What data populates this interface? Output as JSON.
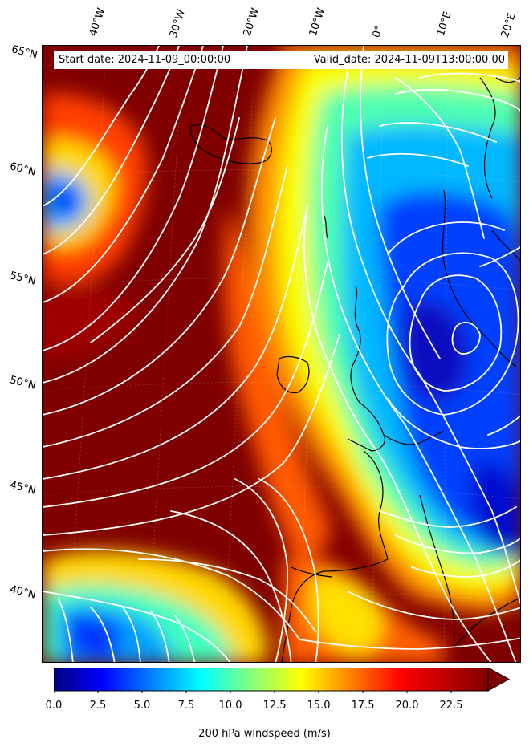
{
  "header": {
    "start_date": "Start date: 2024-11-09_00:00:00",
    "valid_date": "Valid_date: 2024-11-09T13:00:00.00"
  },
  "map": {
    "lon_labels": [
      "40°W",
      "30°W",
      "20°W",
      "10°W",
      "0°",
      "10°E",
      "20°E"
    ],
    "lat_labels": [
      "65°N",
      "60°N",
      "55°N",
      "50°N",
      "45°N",
      "40°N"
    ],
    "colormap": "jet",
    "field": "200 hPa windspeed",
    "overlay": "streamlines (white)",
    "coastline_color": "#000000",
    "streamline_color": "#ffffff"
  },
  "colorbar": {
    "ticks": [
      "0.0",
      "2.5",
      "5.0",
      "7.5",
      "10.0",
      "12.5",
      "15.0",
      "17.5",
      "20.0",
      "22.5"
    ],
    "min": 0,
    "max": 25,
    "extend": "max",
    "label": "200 hPa windspeed (m/s)"
  }
}
